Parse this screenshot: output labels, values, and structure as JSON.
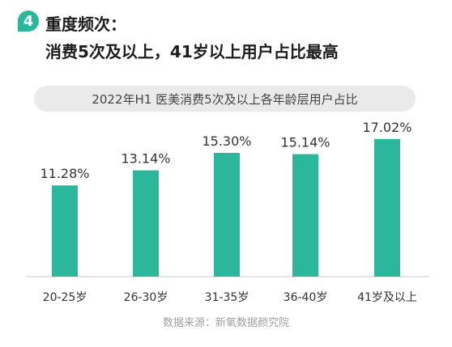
{
  "header": {
    "number": "4",
    "line1": "重度频次：",
    "line2": "消费5次及以上，41岁以上用户占比最高"
  },
  "source": "数据来源：新氧数据颜究院",
  "colors": {
    "accent": "#2bb79b"
  },
  "chart_data": {
    "type": "bar",
    "title": "2022年H1 医美消费5次及以上各年龄层用户占比",
    "categories": [
      "20-25岁",
      "26-30岁",
      "31-35岁",
      "36-40岁",
      "41岁及以上"
    ],
    "values": [
      11.28,
      13.14,
      15.3,
      15.14,
      17.02
    ],
    "value_labels": [
      "11.28%",
      "13.14%",
      "15.30%",
      "15.14%",
      "17.02%"
    ],
    "ylim": [
      0,
      18
    ],
    "xlabel": "",
    "ylabel": "",
    "grid": false,
    "legend": "none"
  }
}
